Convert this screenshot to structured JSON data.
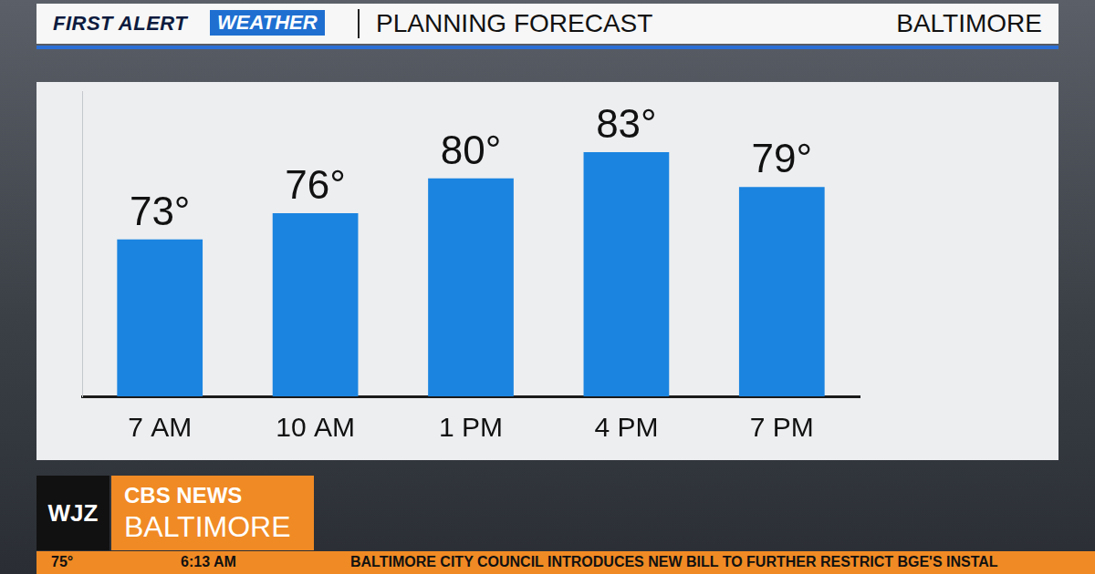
{
  "header": {
    "brand": "FIRST ALERT",
    "brand_box": "WEATHER",
    "location": "BALTIMORE"
  },
  "chart_data": {
    "type": "bar",
    "title": "PLANNING FORECAST",
    "categories": [
      "7 AM",
      "10 AM",
      "1 PM",
      "4 PM",
      "7 PM"
    ],
    "values": [
      73,
      76,
      80,
      83,
      79
    ],
    "value_labels": [
      "73°",
      "76°",
      "80°",
      "83°",
      "79°"
    ],
    "color": "#1b84e0",
    "ylim": [
      55,
      90
    ],
    "grid": false,
    "data_labels": true,
    "tick_labels": "x"
  },
  "ticker": {
    "station": "WJZ",
    "network": "CBS NEWS",
    "city": "BALTIMORE",
    "temperature": "75°",
    "time": "6:13 AM",
    "headline": "BALTIMORE CITY COUNCIL INTRODUCES NEW BILL TO FURTHER RESTRICT BGE'S INSTAL"
  }
}
